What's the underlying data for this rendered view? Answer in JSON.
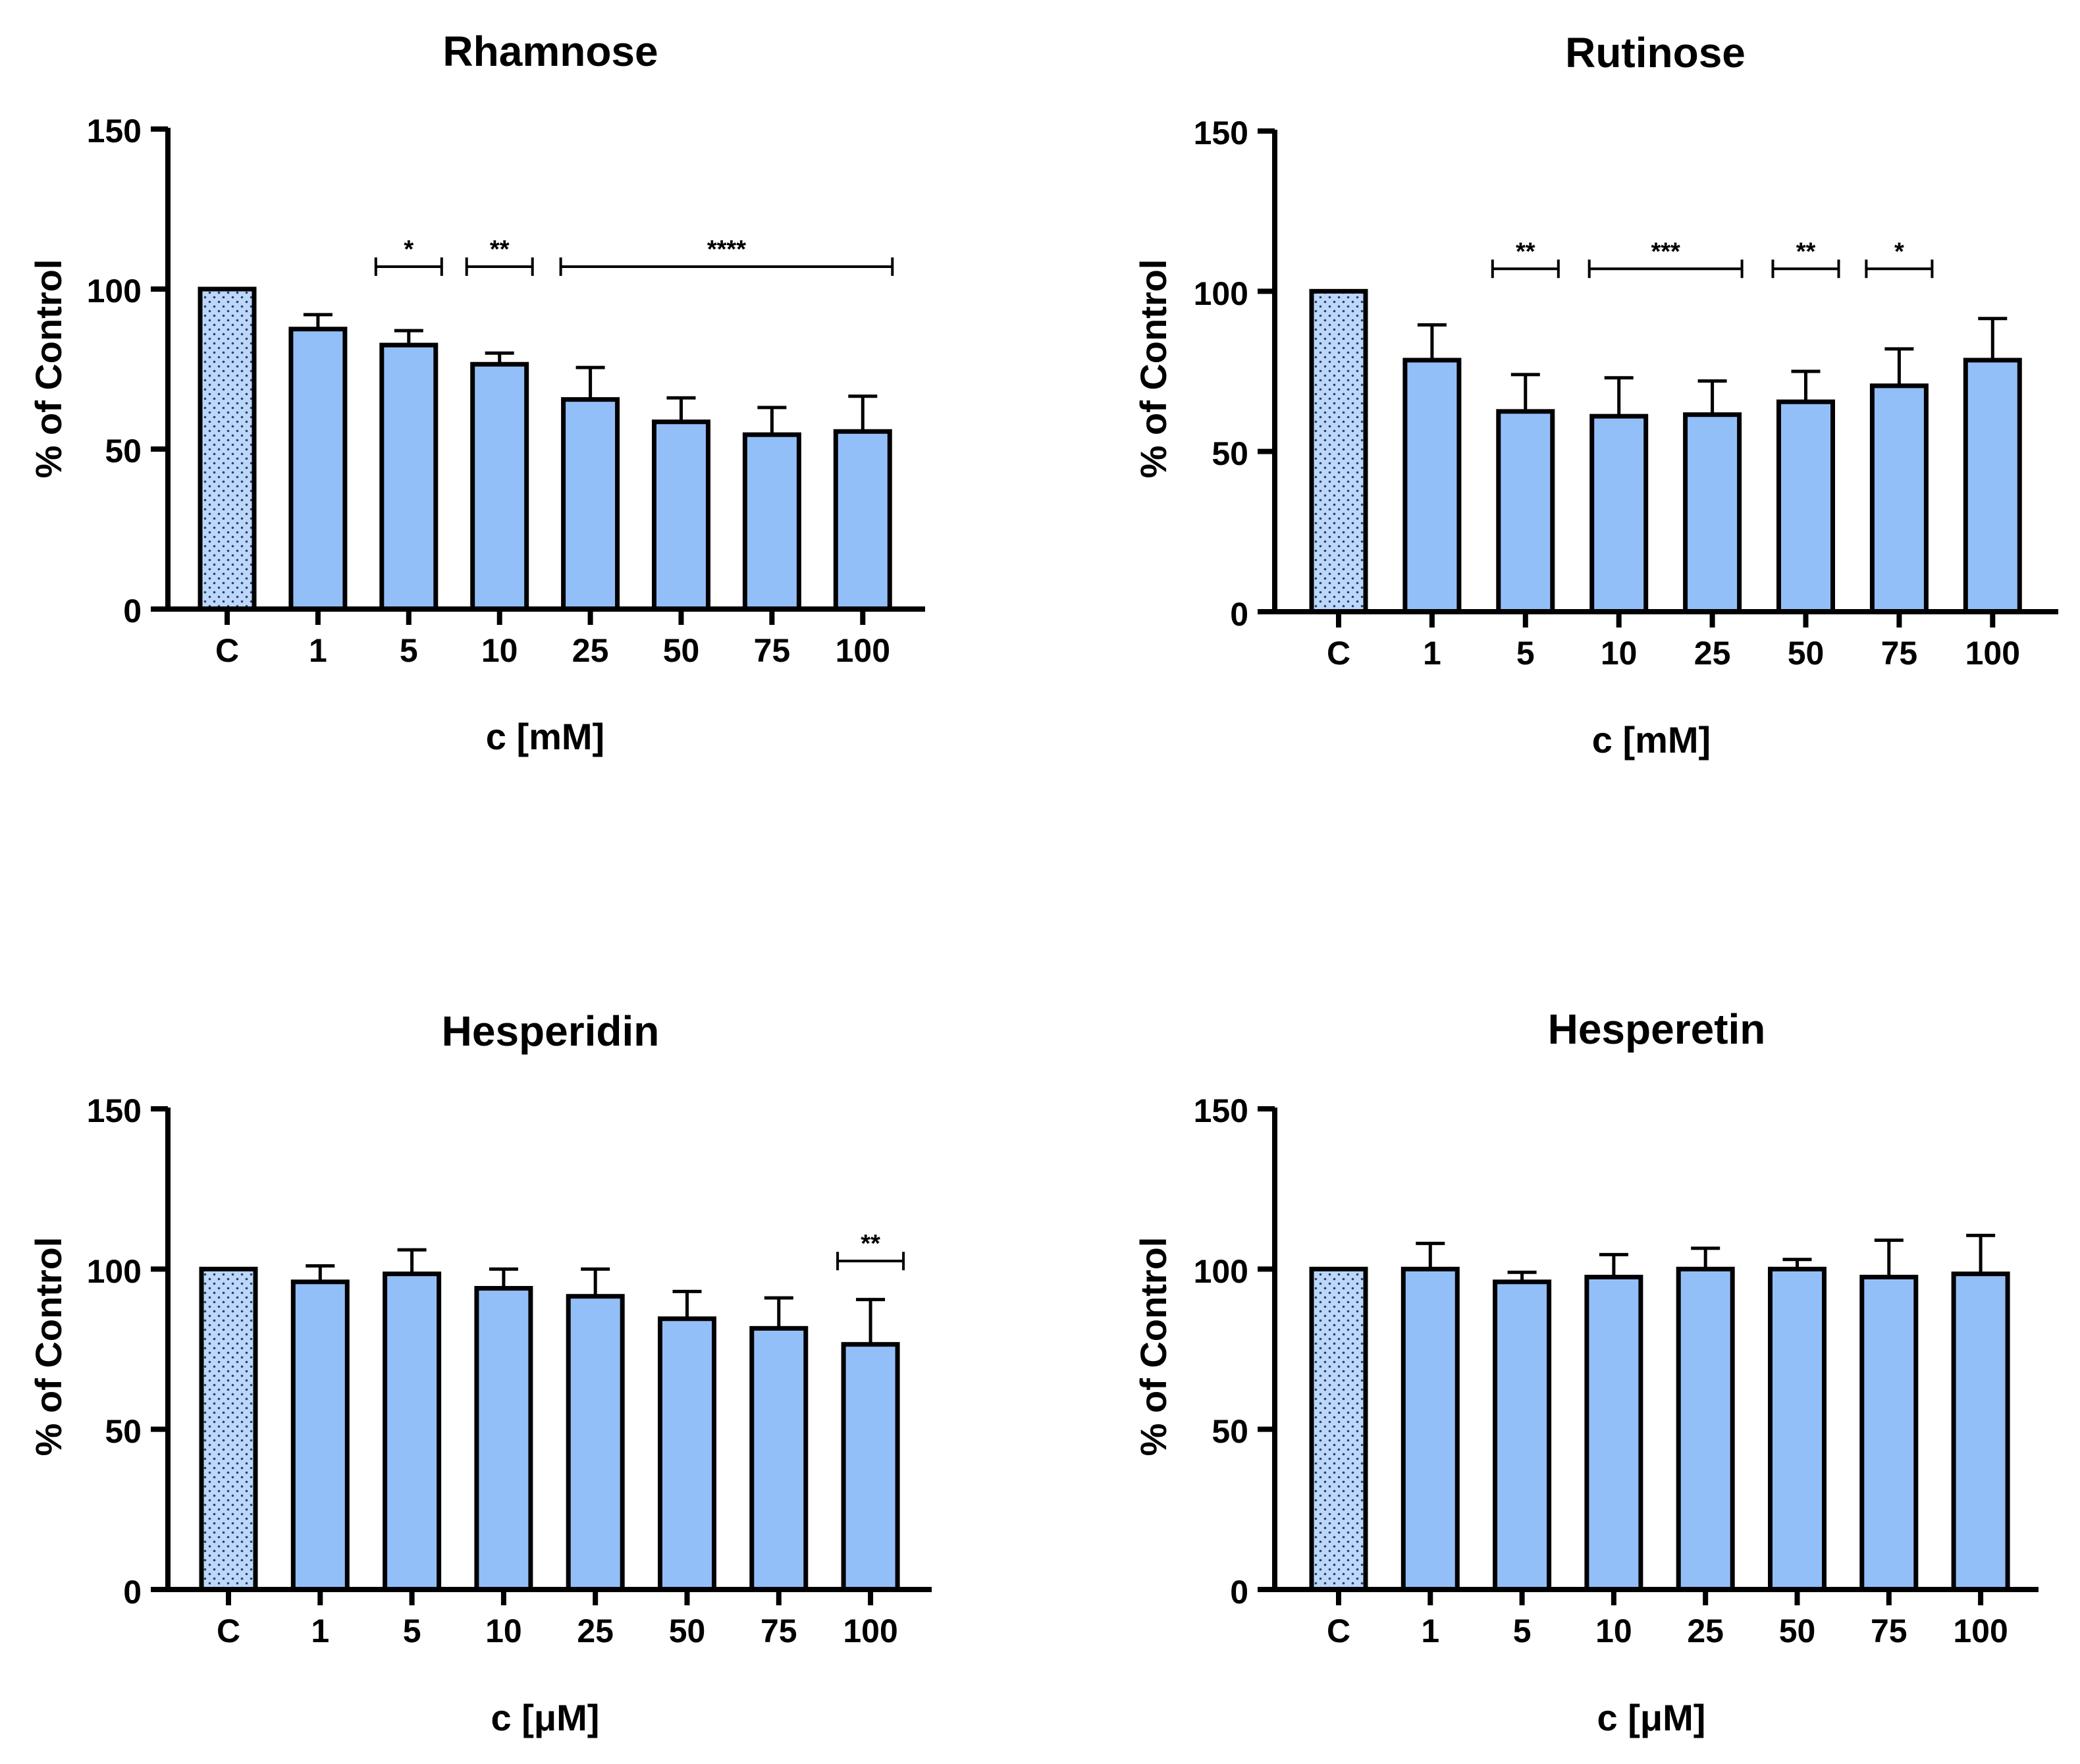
{
  "colors": {
    "bar_fill": "#93BFF9",
    "control_fill": "#BCD7FA",
    "stroke": "#000000"
  },
  "chart_data": [
    {
      "type": "bar",
      "title": "Rhamnose",
      "xlabel": "c [mM]",
      "ylabel": "% of Control",
      "ylim": [
        0,
        150
      ],
      "yticks": [
        "0",
        "50",
        "100",
        "150"
      ],
      "categories": [
        "C",
        "1",
        "5",
        "10",
        "25",
        "50",
        "75",
        "100"
      ],
      "values": [
        100,
        87.5,
        82.5,
        76.5,
        65.5,
        58.5,
        54.5,
        55.5
      ],
      "errors": [
        0,
        4.5,
        4.5,
        3.5,
        10,
        7.5,
        8.5,
        11
      ],
      "significance": [
        {
          "label": "*",
          "from": 2,
          "to": 2
        },
        {
          "label": "**",
          "from": 3,
          "to": 3
        },
        {
          "label": "****",
          "from": 4,
          "to": 7
        }
      ]
    },
    {
      "type": "bar",
      "title": "Rutinose",
      "xlabel": "c [mM]",
      "ylabel": "% of Control",
      "ylim": [
        0,
        150
      ],
      "yticks": [
        "0",
        "50",
        "100",
        "150"
      ],
      "categories": [
        "C",
        "1",
        "5",
        "10",
        "25",
        "50",
        "75",
        "100"
      ],
      "values": [
        100,
        78.5,
        62.5,
        61,
        61.5,
        65.5,
        70.5,
        78.5
      ],
      "errors": [
        0,
        11,
        11.5,
        12,
        10.5,
        9.5,
        11.5,
        13
      ],
      "significance": [
        {
          "label": "**",
          "from": 2,
          "to": 2
        },
        {
          "label": "***",
          "from": 3,
          "to": 4
        },
        {
          "label": "**",
          "from": 5,
          "to": 5
        },
        {
          "label": "*",
          "from": 6,
          "to": 6
        }
      ]
    },
    {
      "type": "bar",
      "title": "Hesperidin",
      "xlabel": "c [μM]",
      "ylabel": "% of Control",
      "ylim": [
        0,
        150
      ],
      "yticks": [
        "0",
        "50",
        "100",
        "150"
      ],
      "categories": [
        "C",
        "1",
        "5",
        "10",
        "25",
        "50",
        "75",
        "100"
      ],
      "values": [
        100,
        96,
        98.5,
        94,
        91.5,
        84.5,
        81.5,
        76.5
      ],
      "errors": [
        0,
        5,
        7.5,
        6,
        8.5,
        8.5,
        9.5,
        14
      ],
      "significance": [
        {
          "label": "**",
          "from": 7,
          "to": 7
        }
      ]
    },
    {
      "type": "bar",
      "title": "Hesperetin",
      "xlabel": "c [μM]",
      "ylabel": "% of Control",
      "ylim": [
        0,
        150
      ],
      "yticks": [
        "0",
        "50",
        "100",
        "150"
      ],
      "categories": [
        "C",
        "1",
        "5",
        "10",
        "25",
        "50",
        "75",
        "100"
      ],
      "values": [
        100,
        100,
        96,
        97.5,
        100,
        100,
        97.5,
        98.5
      ],
      "errors": [
        0,
        8,
        3,
        7,
        6.5,
        3,
        11.5,
        12
      ],
      "significance": []
    }
  ]
}
